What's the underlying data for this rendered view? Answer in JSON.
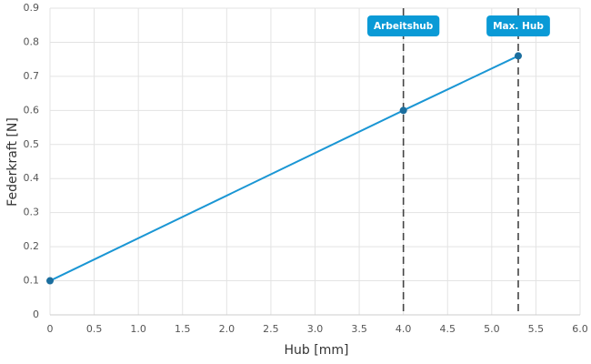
{
  "chart_data": {
    "type": "line",
    "x": [
      0,
      4,
      5.3
    ],
    "values": [
      0.1,
      0.6,
      0.76
    ],
    "color": "#1a96d4",
    "marker_color": "#1b6e9e",
    "xlabel": "Hub [mm]",
    "ylabel": "Federkraft [N]",
    "xlim": [
      0,
      6
    ],
    "ylim": [
      0,
      0.9
    ],
    "xticks": [
      0,
      0.5,
      {
        "value": 1,
        "label": "1.0"
      },
      1.5,
      {
        "value": 2,
        "label": "2.0"
      },
      2.5,
      {
        "value": 3,
        "label": "3.0"
      },
      3.5,
      {
        "value": 4,
        "label": "4.0"
      },
      4.5,
      {
        "value": 5,
        "label": "5.0"
      },
      5.5,
      {
        "value": 6,
        "label": "6.0"
      }
    ],
    "yticks": [
      0,
      0.1,
      0.2,
      0.3,
      0.4,
      0.5,
      0.6,
      0.7,
      0.8,
      0.9
    ],
    "grid": true,
    "annotations": [
      {
        "x": 4,
        "label": "Arbeitshub"
      },
      {
        "x": 5.3,
        "label": "Max. Hub"
      }
    ],
    "annotation_color": "#0a9ad6"
  }
}
